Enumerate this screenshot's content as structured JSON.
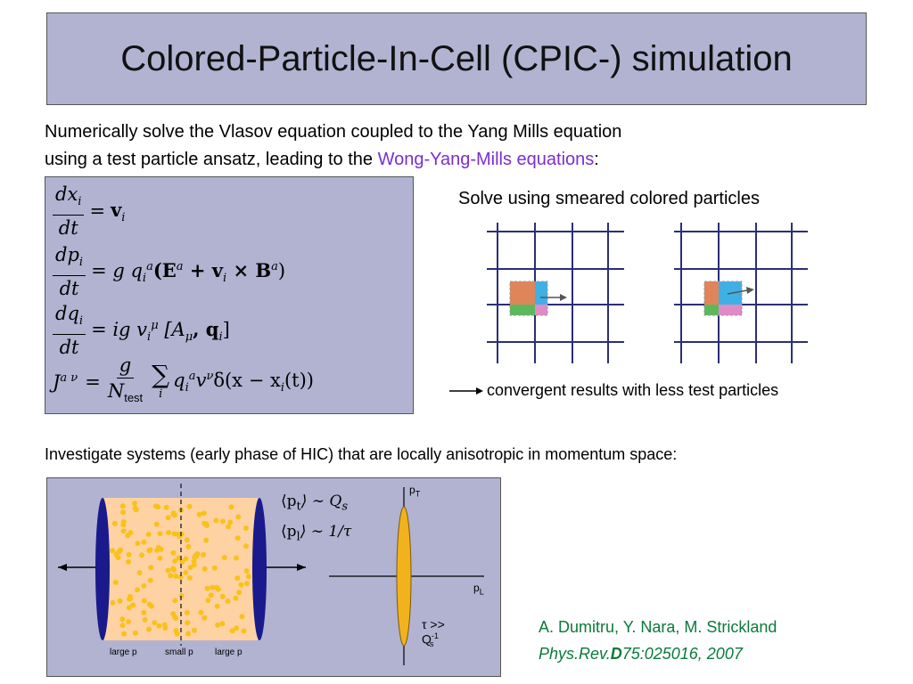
{
  "title": "Colored-Particle-In-Cell (CPIC-) simulation",
  "intro": {
    "line1": "Numerically solve the Vlasov equation coupled to the Yang Mills equation",
    "line2_prefix": "using a test particle ansatz, leading to the ",
    "line2_link": "Wong-Yang-Mills equations",
    "line2_suffix": ":"
  },
  "equations": {
    "eq1": {
      "num": "dx",
      "num_sub": "i",
      "den": "dt",
      "eq": "=",
      "rhs_v": "v",
      "rhs_sub": "i"
    },
    "eq2": {
      "num": "dp",
      "num_sub": "i",
      "den": "dt",
      "pre": "= g q",
      "q_sub": "i",
      "q_sup": "a",
      "body": "(E",
      "E_sup": "a",
      "mid": " + v",
      "v_sub": "i",
      "cross": " × B",
      "B_sup": "a",
      "end": ")"
    },
    "eq3": {
      "num": "dq",
      "num_sub": "i",
      "den": "dt",
      "pre": "= ig v",
      "v_sub": "i",
      "v_sup": "μ",
      "body": " [A",
      "A_sub": "μ",
      "mid": ", q",
      "q_sub": "i",
      "end": "]"
    },
    "eq4": {
      "lhs": "J",
      "lhs_sup": "a ν",
      "eq": "=",
      "num": "g",
      "den": "N",
      "den_sub": "test",
      "sum": "∑",
      "sum_sub": "i",
      "q": "q",
      "q_sub": "i",
      "q_sup": "a",
      "v": "v",
      "v_sup": "ν",
      "delta": "δ(x − x",
      "x_sub": "i",
      "end": "(t))"
    }
  },
  "smeared": {
    "label": "Solve using smeared colored particles"
  },
  "convergent": {
    "label": "convergent results with less test particles"
  },
  "investigate": {
    "label": "Investigate systems (early phase of HIC) that are locally anisotropic in momentum space:"
  },
  "figure": {
    "pt_lhs": "⟨p",
    "pt_sub": "t",
    "pt_rhs": "⟩ ∼ Q",
    "pt_rhs_sub": "s",
    "pl_lhs": "⟨p",
    "pl_sub": "l",
    "pl_rhs": "⟩ ∼ 1/τ",
    "axis_pT": "p",
    "axis_pT_sub": "T",
    "axis_pL": "p",
    "axis_pL_sub": "L",
    "tau_label": "τ >> Q",
    "tau_sup": "-1",
    "tau_sub": "s",
    "large_p_left": "large p",
    "small_p": "small p",
    "large_p_right": "large p"
  },
  "reference": {
    "authors": "A. Dumitru, Y. Nara, M. Strickland",
    "journal_prefix": "Phys.Rev.",
    "journal_bold": "D",
    "journal_suffix": "75:025016, 2007"
  },
  "colors": {
    "slide_bg": "#b1b3d1",
    "grid_line": "#2c2e78",
    "link": "#7a2fd0",
    "reference": "#0a7a3a",
    "orange": "#e0855a",
    "blue": "#3fb0e6",
    "green": "#5cb85c",
    "pink": "#e08bc8",
    "cylinder_fill": "#ffd2a4",
    "dot": "#f8c21c",
    "cap": "#1a1a8c",
    "ellipse": "#f2b21c"
  }
}
